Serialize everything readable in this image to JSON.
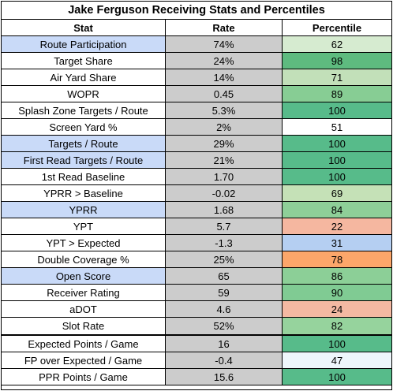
{
  "title": "Jake Ferguson Receiving Stats and Percentiles",
  "headers": {
    "stat": "Stat",
    "rate": "Rate",
    "percentile": "Percentile"
  },
  "colors": {
    "highlight_blue": "#c9daf8",
    "rate_gray": "#cccccc"
  },
  "rows": [
    {
      "stat": "Route Participation",
      "rate": "74%",
      "percentile": "62",
      "stat_highlight": true,
      "pct_color": "#d6ebd0"
    },
    {
      "stat": "Target Share",
      "rate": "24%",
      "percentile": "98",
      "stat_highlight": false,
      "pct_color": "#5ebb7f"
    },
    {
      "stat": "Air Yard Share",
      "rate": "14%",
      "percentile": "71",
      "stat_highlight": false,
      "pct_color": "#c2e0b9"
    },
    {
      "stat": "WOPR",
      "rate": "0.45",
      "percentile": "89",
      "stat_highlight": false,
      "pct_color": "#87cd94"
    },
    {
      "stat": "Splash Zone Targets / Route",
      "rate": "5.3%",
      "percentile": "100",
      "stat_highlight": false,
      "pct_color": "#57bb8a"
    },
    {
      "stat": "Screen Yard %",
      "rate": "2%",
      "percentile": "51",
      "stat_highlight": false,
      "pct_color": "#ffffff"
    },
    {
      "stat": "Targets / Route",
      "rate": "29%",
      "percentile": "100",
      "stat_highlight": true,
      "pct_color": "#57bb8a"
    },
    {
      "stat": "First Read Targets / Route",
      "rate": "21%",
      "percentile": "100",
      "stat_highlight": true,
      "pct_color": "#57bb8a"
    },
    {
      "stat": "1st Read Baseline",
      "rate": "1.70",
      "percentile": "100",
      "stat_highlight": false,
      "pct_color": "#57bb8a"
    },
    {
      "stat": "YPRR > Baseline",
      "rate": "-0.02",
      "percentile": "69",
      "stat_highlight": false,
      "pct_color": "#c5e1b7"
    },
    {
      "stat": "YPRR",
      "rate": "1.68",
      "percentile": "84",
      "stat_highlight": true,
      "pct_color": "#8ecf98"
    },
    {
      "stat": "YPT",
      "rate": "5.7",
      "percentile": "22",
      "stat_highlight": false,
      "pct_color": "#f5b7a0"
    },
    {
      "stat": "YPT > Expected",
      "rate": "-1.3",
      "percentile": "31",
      "stat_highlight": false,
      "pct_color": "#b5cff2"
    },
    {
      "stat": "Double Coverage %",
      "rate": "25%",
      "percentile": "78",
      "stat_highlight": false,
      "pct_color": "#fca66a"
    },
    {
      "stat": "Open Score",
      "rate": "65",
      "percentile": "86",
      "stat_highlight": true,
      "pct_color": "#8ccf97"
    },
    {
      "stat": "Receiver Rating",
      "rate": "59",
      "percentile": "90",
      "stat_highlight": false,
      "pct_color": "#80cb93"
    },
    {
      "stat": "aDOT",
      "rate": "4.6",
      "percentile": "24",
      "stat_highlight": false,
      "pct_color": "#f4b9a2"
    },
    {
      "stat": "Slot Rate",
      "rate": "52%",
      "percentile": "82",
      "stat_highlight": false,
      "pct_color": "#96d39d"
    },
    {
      "stat": "Expected Points / Game",
      "rate": "16",
      "percentile": "100",
      "stat_highlight": false,
      "pct_color": "#57bb8a"
    },
    {
      "stat": "FP over Expected / Game",
      "rate": "-0.4",
      "percentile": "47",
      "stat_highlight": false,
      "pct_color": "#eef6fb"
    },
    {
      "stat": "PPR Points / Game",
      "rate": "15.6",
      "percentile": "100",
      "stat_highlight": false,
      "pct_color": "#57bb8a"
    }
  ]
}
